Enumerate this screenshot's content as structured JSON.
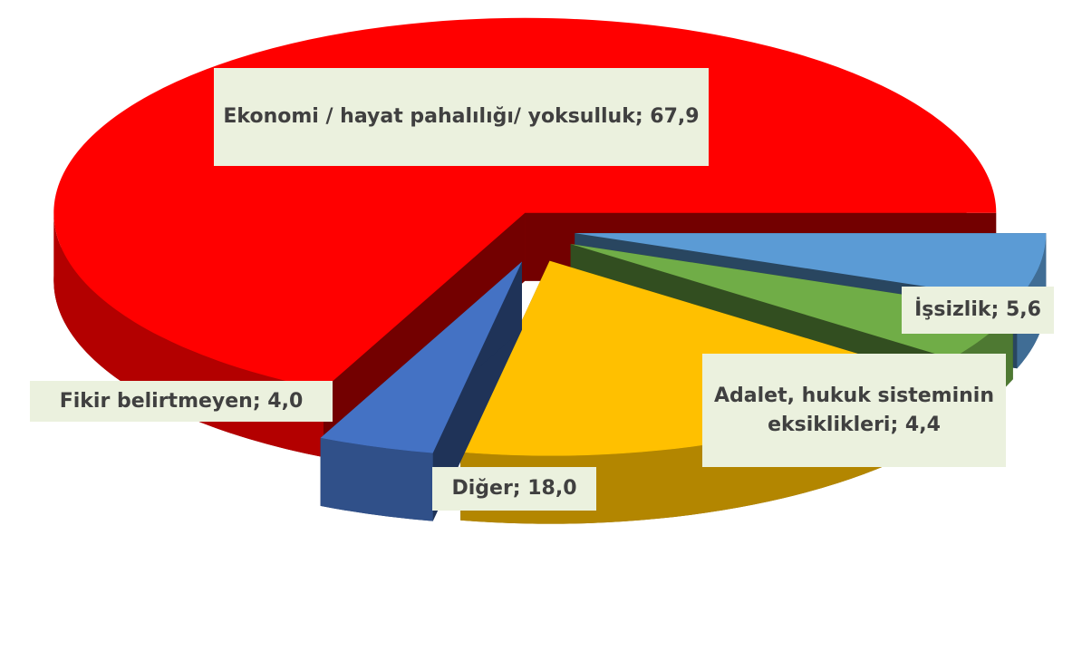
{
  "chart_data": {
    "type": "pie",
    "values": [
      5.6,
      4.4,
      18.0,
      4.0,
      67.9
    ],
    "value_labels": [
      "İşsizlik; 5,6",
      "Adalet, hukuk sisteminin eksiklikleri; 4,4",
      "Diğer; 18,0",
      "Fikir belirtmeyen; 4,0",
      "Ekonomi / hayat pahalılığı/ yoksulluk; 67,9"
    ],
    "colors": [
      "#5b9bd5",
      "#70ad47",
      "#ffc000",
      "#4472c4",
      "#ff0000"
    ]
  }
}
